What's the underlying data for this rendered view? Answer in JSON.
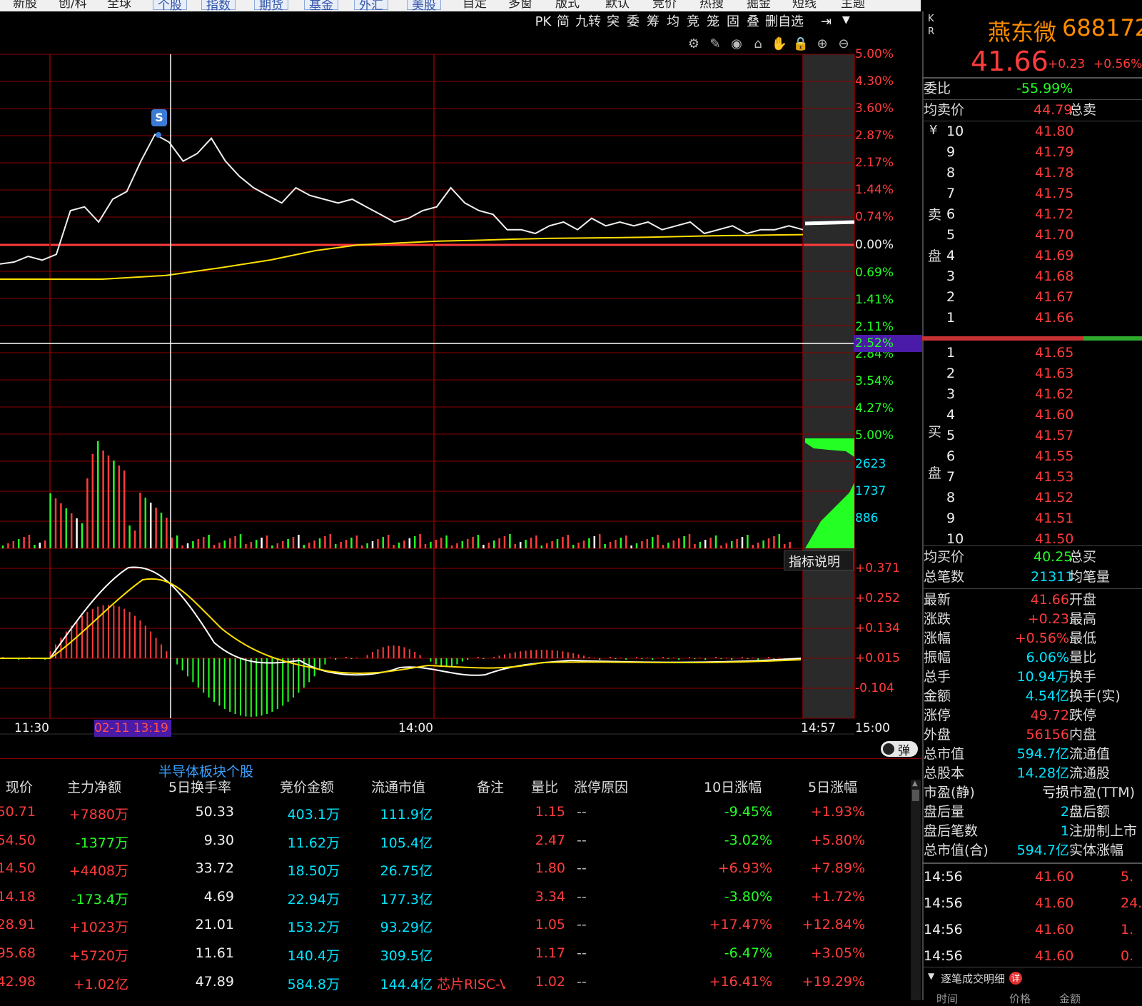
{
  "topnav": {
    "items": [
      {
        "label": "新股"
      },
      {
        "label": "创/科"
      },
      {
        "label": "全球"
      },
      {
        "label": "个股"
      },
      {
        "label": "指数"
      },
      {
        "label": "期货"
      },
      {
        "label": "基金"
      },
      {
        "label": "外汇"
      },
      {
        "label": "美股"
      },
      {
        "label": "自定"
      },
      {
        "label": "多窗"
      },
      {
        "label": "版式"
      },
      {
        "label": "默认"
      },
      {
        "label": "竞价"
      },
      {
        "label": "热搜"
      },
      {
        "label": "掘金"
      },
      {
        "label": "短线"
      },
      {
        "label": "主题"
      }
    ]
  },
  "toolbar": {
    "buttons": [
      {
        "label": "PK"
      },
      {
        "label": "简"
      },
      {
        "label": "九转"
      },
      {
        "label": "突"
      },
      {
        "label": "委"
      },
      {
        "label": "筹"
      },
      {
        "label": "均"
      },
      {
        "label": "竞"
      },
      {
        "label": "笼"
      },
      {
        "label": "固"
      },
      {
        "label": "叠"
      },
      {
        "label": "删自选"
      }
    ],
    "icons": [
      {
        "name": "settings-icon"
      },
      {
        "name": "pen-icon"
      },
      {
        "name": "eye-icon"
      },
      {
        "name": "basket-icon"
      },
      {
        "name": "hand-icon"
      },
      {
        "name": "lock-icon"
      },
      {
        "name": "zoom-in-icon"
      },
      {
        "name": "zoom-out-icon"
      }
    ]
  },
  "chart": {
    "price_axis_red": [
      "5.00%",
      "4.30%",
      "3.60%",
      "2.87%",
      "2.17%",
      "1.44%",
      "0.74%"
    ],
    "zero": "0.00%",
    "price_axis_green": [
      "0.69%",
      "1.41%",
      "2.11%",
      "2.84%",
      "3.54%",
      "4.27%",
      "5.00%"
    ],
    "crosshair_value": "2.52%",
    "volume_axis": [
      "2623",
      "1737",
      "886"
    ],
    "macd_axis": [
      "+0.371",
      "+0.252",
      "+0.134",
      "+0.015",
      "-0.104"
    ],
    "indicator_button": "指标说明",
    "time_labels": {
      "t1": "11:30",
      "cursor": "02-11 13:19",
      "t2": "14:00",
      "t3": "14:57",
      "t4": "15:00"
    },
    "signal": "S",
    "popup_toggle": "弹",
    "colors": {
      "up": "#ff3c3c",
      "down": "#24ff24",
      "avg": "#ffe000",
      "grid": "#8b0000"
    }
  },
  "chart_data": {
    "type": "line",
    "price_pct": [
      -0.5,
      -0.45,
      -0.3,
      -0.4,
      -0.25,
      0.9,
      1.0,
      0.6,
      1.2,
      1.4,
      2.2,
      2.9,
      2.7,
      2.2,
      2.4,
      2.8,
      2.2,
      1.8,
      1.5,
      1.3,
      1.1,
      1.5,
      1.3,
      1.2,
      1.1,
      1.2,
      1.0,
      0.8,
      0.6,
      0.7,
      0.9,
      1.0,
      1.5,
      1.1,
      0.9,
      0.8,
      0.4,
      0.4,
      0.3,
      0.5,
      0.6,
      0.4,
      0.7,
      0.5,
      0.6,
      0.5,
      0.6,
      0.4,
      0.5,
      0.6,
      0.3,
      0.4,
      0.5,
      0.3,
      0.4,
      0.4,
      0.5,
      0.4
    ],
    "avg_pct": [
      -0.9,
      -0.9,
      -0.8,
      -0.6,
      -0.4,
      -0.15,
      0.0,
      0.05,
      0.1,
      0.12,
      0.15,
      0.17,
      0.18,
      0.19,
      0.2,
      0.22,
      0.24,
      0.25,
      0.26,
      0.27
    ],
    "signal_point": {
      "time": "13:19",
      "label": "S"
    }
  },
  "quote": {
    "name": "燕东微",
    "code": "688172",
    "price": "41.66",
    "change": "+0.23",
    "pct": "+0.56%",
    "kr": "K R"
  },
  "orderbook": {
    "weibi_label": "委比",
    "weibi": "-55.99%",
    "avg_sell_label": "均卖价",
    "avg_sell": "44.79",
    "total_sell_label": "总卖",
    "sell_side_label": "卖盘",
    "buy_side_label": "买盘",
    "yen": "¥",
    "asks": [
      {
        "lvl": "10",
        "price": "41.80"
      },
      {
        "lvl": "9",
        "price": "41.79"
      },
      {
        "lvl": "8",
        "price": "41.78"
      },
      {
        "lvl": "7",
        "price": "41.75"
      },
      {
        "lvl": "6",
        "price": "41.72"
      },
      {
        "lvl": "5",
        "price": "41.70"
      },
      {
        "lvl": "4",
        "price": "41.69"
      },
      {
        "lvl": "3",
        "price": "41.68"
      },
      {
        "lvl": "2",
        "price": "41.67"
      },
      {
        "lvl": "1",
        "price": "41.66"
      }
    ],
    "bids": [
      {
        "lvl": "1",
        "price": "41.65"
      },
      {
        "lvl": "2",
        "price": "41.63"
      },
      {
        "lvl": "3",
        "price": "41.62"
      },
      {
        "lvl": "4",
        "price": "41.60"
      },
      {
        "lvl": "5",
        "price": "41.57"
      },
      {
        "lvl": "6",
        "price": "41.55"
      },
      {
        "lvl": "7",
        "price": "41.53"
      },
      {
        "lvl": "8",
        "price": "41.52"
      },
      {
        "lvl": "9",
        "price": "41.51"
      },
      {
        "lvl": "10",
        "price": "41.50"
      }
    ],
    "avg_buy_label": "均买价",
    "avg_buy": "40.25",
    "total_buy_label": "总买",
    "total_trades_label": "总笔数",
    "total_trades": "21311",
    "avg_vol_label": "均笔量"
  },
  "stats": [
    {
      "l": "最新",
      "v": "41.66",
      "c": "red",
      "r": "开盘"
    },
    {
      "l": "涨跌",
      "v": "+0.23",
      "c": "red",
      "r": "最高"
    },
    {
      "l": "涨幅",
      "v": "+0.56%",
      "c": "red",
      "r": "最低"
    },
    {
      "l": "振幅",
      "v": "6.06%",
      "c": "cyn",
      "r": "量比"
    },
    {
      "l": "总手",
      "v": "10.94万",
      "c": "cyn",
      "r": "换手"
    },
    {
      "l": "金额",
      "v": "4.54亿",
      "c": "cyn",
      "r": "换手(实)"
    },
    {
      "l": "涨停",
      "v": "49.72",
      "c": "red",
      "r": "跌停"
    },
    {
      "l": "外盘",
      "v": "56156",
      "c": "red",
      "r": "内盘"
    },
    {
      "l": "总市值",
      "v": "594.7亿",
      "c": "cyn",
      "r": "流通值"
    },
    {
      "l": "总股本",
      "v": "14.28亿",
      "c": "cyn",
      "r": "流通股"
    },
    {
      "l": "市盈(静)",
      "v": "亏损",
      "c": "wht",
      "r": "市盈(TTM)"
    },
    {
      "l": "盘后量",
      "v": "2",
      "c": "cyn",
      "r": "盘后额"
    },
    {
      "l": "盘后笔数",
      "v": "1",
      "c": "cyn",
      "r": "注册制上市"
    },
    {
      "l": "总市值(合)",
      "v": "594.7亿",
      "c": "cyn",
      "r": "实体涨幅"
    }
  ],
  "ticks": [
    {
      "t": "14:56",
      "p": "41.60",
      "v": "5."
    },
    {
      "t": "14:56",
      "p": "41.60",
      "v": "24."
    },
    {
      "t": "14:56",
      "p": "41.60",
      "v": "1."
    },
    {
      "t": "14:56",
      "p": "41.60",
      "v": "0."
    }
  ],
  "tick_panel": {
    "title": "逐笔成交明细",
    "detail_badge": "详",
    "cols": [
      "时间",
      "价格",
      "金额"
    ]
  },
  "sector": {
    "title": "半导体板块个股",
    "headers": [
      "现价",
      "主力净额",
      "5日换手率",
      "竞价金额",
      "流通市值",
      "备注",
      "量比",
      "涨停原因",
      "10日涨幅",
      "5日涨幅"
    ],
    "rows": [
      {
        "c0": "50.71",
        "c1": "+7880万",
        "c2": "50.33",
        "c3": "403.1万",
        "c4": "111.9亿",
        "c5": "",
        "c6": "1.15",
        "c7": "--",
        "c8": "-9.45%",
        "c9": "+1.93%"
      },
      {
        "c0": "54.50",
        "c1": "-1377万",
        "c2": "9.30",
        "c3": "11.62万",
        "c4": "105.4亿",
        "c5": "",
        "c6": "2.47",
        "c7": "--",
        "c8": "-3.02%",
        "c9": "+5.80%"
      },
      {
        "c0": "14.50",
        "c1": "+4408万",
        "c2": "33.72",
        "c3": "18.50万",
        "c4": "26.75亿",
        "c5": "",
        "c6": "1.80",
        "c7": "--",
        "c8": "+6.93%",
        "c9": "+7.89%"
      },
      {
        "c0": "14.18",
        "c1": "-173.4万",
        "c2": "4.69",
        "c3": "22.94万",
        "c4": "177.3亿",
        "c5": "",
        "c6": "3.34",
        "c7": "--",
        "c8": "-3.80%",
        "c9": "+1.72%"
      },
      {
        "c0": "28.91",
        "c1": "+1023万",
        "c2": "21.01",
        "c3": "153.2万",
        "c4": "93.29亿",
        "c5": "",
        "c6": "1.05",
        "c7": "--",
        "c8": "+17.47%",
        "c9": "+12.84%"
      },
      {
        "c0": "95.68",
        "c1": "+5720万",
        "c2": "11.61",
        "c3": "140.4万",
        "c4": "309.5亿",
        "c5": "",
        "c6": "1.17",
        "c7": "--",
        "c8": "-6.47%",
        "c9": "+3.05%"
      },
      {
        "c0": "42.98",
        "c1": "+1.02亿",
        "c2": "47.89",
        "c3": "584.8万",
        "c4": "144.4亿",
        "c5": "芯片RISC-V概",
        "c6": "1.02",
        "c7": "--",
        "c8": "+16.41%",
        "c9": "+19.29%"
      }
    ]
  }
}
